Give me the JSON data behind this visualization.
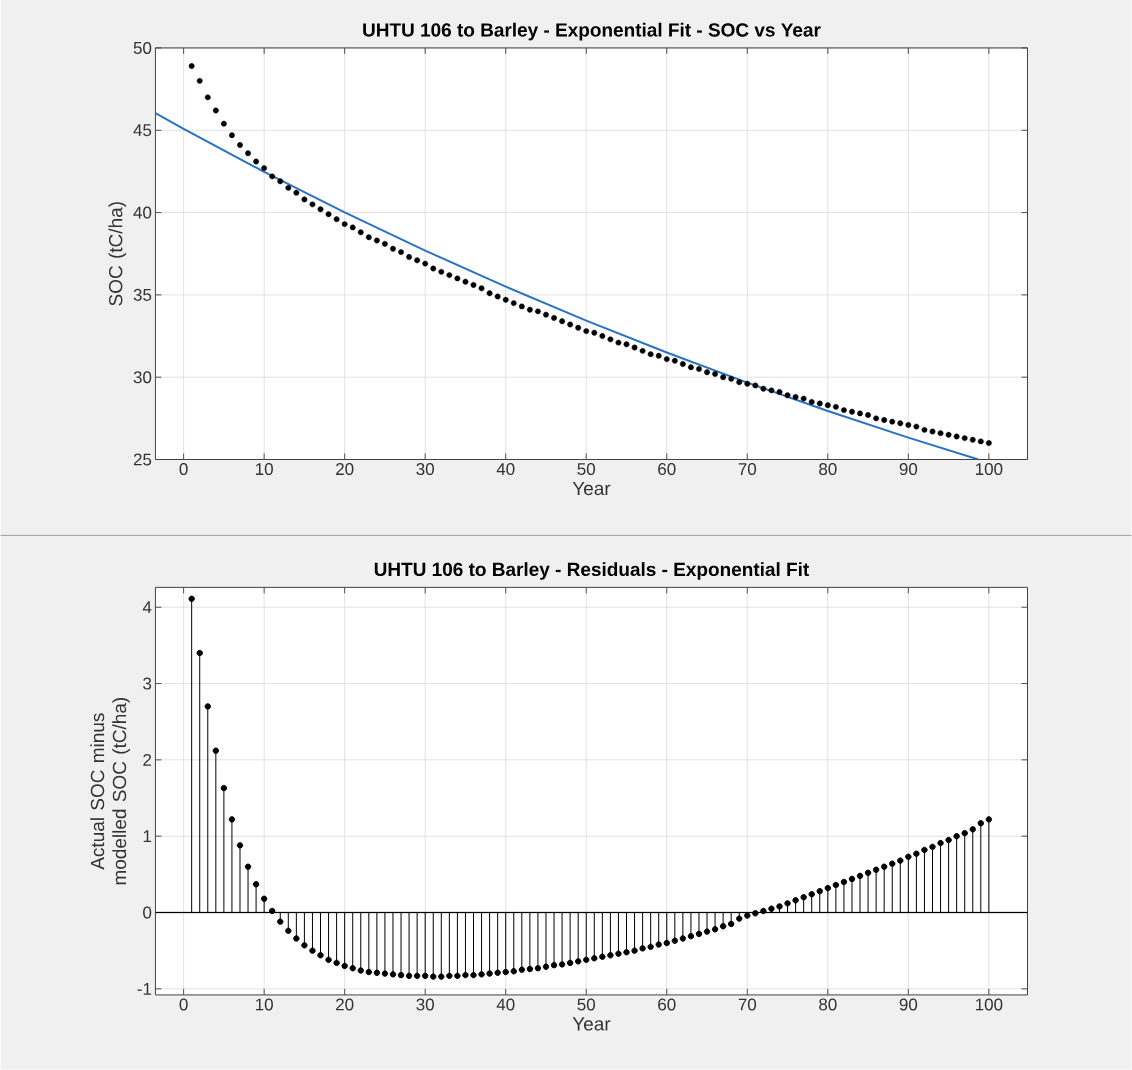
{
  "chart_data": [
    {
      "type": "scatter",
      "title": "UHTU 106 to Barley - Exponential Fit - SOC vs Year",
      "xlabel": "Year",
      "ylabel": "SOC (tC/ha)",
      "xlim": [
        -3.5,
        104.8
      ],
      "ylim": [
        25,
        50
      ],
      "xticks": [
        0,
        10,
        20,
        30,
        40,
        50,
        60,
        70,
        80,
        90,
        100
      ],
      "yticks": [
        25,
        30,
        35,
        40,
        45,
        50
      ],
      "grid": true,
      "marker": "circle",
      "series": [
        {
          "type": "scatter",
          "color": "#000000",
          "x": [
            1,
            2,
            3,
            4,
            5,
            6,
            7,
            8,
            9,
            10,
            11,
            12,
            13,
            14,
            15,
            16,
            17,
            18,
            19,
            20,
            21,
            22,
            23,
            24,
            25,
            26,
            27,
            28,
            29,
            30,
            31,
            32,
            33,
            34,
            35,
            36,
            37,
            38,
            39,
            40,
            41,
            42,
            43,
            44,
            45,
            46,
            47,
            48,
            49,
            50,
            51,
            52,
            53,
            54,
            55,
            56,
            57,
            58,
            59,
            60,
            61,
            62,
            63,
            64,
            65,
            66,
            67,
            68,
            69,
            70,
            71,
            72,
            73,
            74,
            75,
            76,
            77,
            78,
            79,
            80,
            81,
            82,
            83,
            84,
            85,
            86,
            87,
            88,
            89,
            90,
            91,
            92,
            93,
            94,
            95,
            96,
            97,
            98,
            99,
            100
          ],
          "values": [
            48.9,
            48.0,
            47.0,
            46.2,
            45.4,
            44.7,
            44.1,
            43.6,
            43.1,
            42.7,
            42.2,
            41.9,
            41.5,
            41.2,
            40.8,
            40.5,
            40.2,
            39.9,
            39.6,
            39.3,
            39.1,
            38.8,
            38.5,
            38.3,
            38.1,
            37.8,
            37.6,
            37.3,
            37.1,
            36.9,
            36.6,
            36.4,
            36.2,
            36.0,
            35.8,
            35.6,
            35.4,
            35.1,
            34.9,
            34.7,
            34.5,
            34.3,
            34.1,
            34.0,
            33.8,
            33.6,
            33.4,
            33.2,
            33.0,
            32.8,
            32.7,
            32.5,
            32.3,
            32.1,
            32.0,
            31.8,
            31.6,
            31.4,
            31.3,
            31.1,
            31.0,
            30.8,
            30.6,
            30.5,
            30.3,
            30.2,
            30.0,
            29.9,
            29.7,
            29.6,
            29.5,
            29.3,
            29.2,
            29.1,
            28.9,
            28.8,
            28.7,
            28.5,
            28.4,
            28.3,
            28.2,
            28.0,
            27.9,
            27.8,
            27.7,
            27.5,
            27.4,
            27.3,
            27.2,
            27.1,
            27.0,
            26.8,
            26.7,
            26.6,
            26.5,
            26.4,
            26.3,
            26.2,
            26.1,
            26.0
          ]
        },
        {
          "type": "line",
          "color": "#2a72c4",
          "marker": "none",
          "x": [
            -3.5,
            0,
            10,
            20,
            30,
            40,
            50,
            60,
            70,
            80,
            90,
            98.7
          ],
          "values": [
            46.04,
            45.09,
            42.47,
            40.01,
            37.69,
            35.5,
            33.44,
            31.5,
            29.67,
            27.95,
            26.33,
            25.0
          ]
        }
      ]
    },
    {
      "type": "lollipop",
      "title": "UHTU 106 to Barley - Residuals - Exponential Fit",
      "xlabel": "Year",
      "ylabel": "Actual SOC minus modelled SOC (tC/ha)",
      "xlim": [
        -3.5,
        104.8
      ],
      "ylim": [
        -1.08,
        4.26
      ],
      "xticks": [
        0,
        10,
        20,
        30,
        40,
        50,
        60,
        70,
        80,
        90,
        100
      ],
      "yticks": [
        -1,
        0,
        1,
        2,
        3,
        4
      ],
      "grid": true,
      "marker": "circle",
      "color": "#000000",
      "x": [
        1,
        2,
        3,
        4,
        5,
        6,
        7,
        8,
        9,
        10,
        11,
        12,
        13,
        14,
        15,
        16,
        17,
        18,
        19,
        20,
        21,
        22,
        23,
        24,
        25,
        26,
        27,
        28,
        29,
        30,
        31,
        32,
        33,
        34,
        35,
        36,
        37,
        38,
        39,
        40,
        41,
        42,
        43,
        44,
        45,
        46,
        47,
        48,
        49,
        50,
        51,
        52,
        53,
        54,
        55,
        56,
        57,
        58,
        59,
        60,
        61,
        62,
        63,
        64,
        65,
        66,
        67,
        68,
        69,
        70,
        71,
        72,
        73,
        74,
        75,
        76,
        77,
        78,
        79,
        80,
        81,
        82,
        83,
        84,
        85,
        86,
        87,
        88,
        89,
        90,
        91,
        92,
        93,
        94,
        95,
        96,
        97,
        98,
        99,
        100
      ],
      "values": [
        4.11,
        3.4,
        2.7,
        2.12,
        1.63,
        1.22,
        0.88,
        0.6,
        0.37,
        0.18,
        0.02,
        -0.12,
        -0.24,
        -0.34,
        -0.43,
        -0.5,
        -0.56,
        -0.62,
        -0.66,
        -0.7,
        -0.73,
        -0.76,
        -0.78,
        -0.79,
        -0.8,
        -0.81,
        -0.82,
        -0.83,
        -0.83,
        -0.83,
        -0.84,
        -0.84,
        -0.83,
        -0.83,
        -0.82,
        -0.82,
        -0.81,
        -0.8,
        -0.79,
        -0.78,
        -0.77,
        -0.75,
        -0.74,
        -0.73,
        -0.71,
        -0.69,
        -0.68,
        -0.66,
        -0.64,
        -0.62,
        -0.6,
        -0.58,
        -0.56,
        -0.54,
        -0.52,
        -0.5,
        -0.47,
        -0.45,
        -0.42,
        -0.4,
        -0.37,
        -0.34,
        -0.31,
        -0.28,
        -0.25,
        -0.22,
        -0.18,
        -0.15,
        -0.08,
        -0.04,
        -0.01,
        0.02,
        0.05,
        0.08,
        0.12,
        0.16,
        0.2,
        0.24,
        0.28,
        0.32,
        0.36,
        0.4,
        0.44,
        0.48,
        0.52,
        0.56,
        0.6,
        0.64,
        0.68,
        0.73,
        0.77,
        0.82,
        0.86,
        0.91,
        0.95,
        1.0,
        1.04,
        1.09,
        1.17,
        1.22
      ]
    }
  ]
}
